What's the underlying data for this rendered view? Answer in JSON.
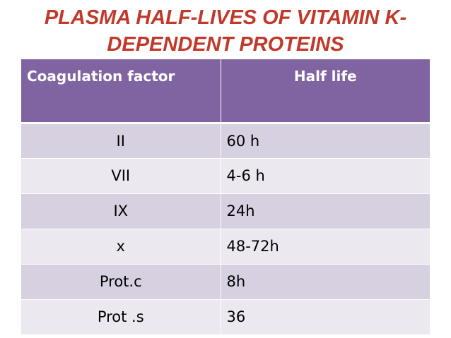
{
  "title": {
    "line1": "PLASMA HALF-LIVES OF VITAMIN K-",
    "line2": "DEPENDENT PROTEINS"
  },
  "table": {
    "headers": [
      "Coagulation factor",
      "Half life"
    ],
    "rows": [
      {
        "factor": "II",
        "half_life": "60 h"
      },
      {
        "factor": "VII",
        "half_life": "4-6 h"
      },
      {
        "factor": "IX",
        "half_life": "24h"
      },
      {
        "factor": "x",
        "half_life": "48-72h"
      },
      {
        "factor": "Prot.c",
        "half_life": "8h"
      },
      {
        "factor": "Prot .s",
        "half_life": "36"
      }
    ]
  },
  "colors": {
    "title": "#c0392b",
    "header_bg": "#8064a2",
    "row_odd": "#d6d0e0",
    "row_even": "#ebe8f0"
  }
}
